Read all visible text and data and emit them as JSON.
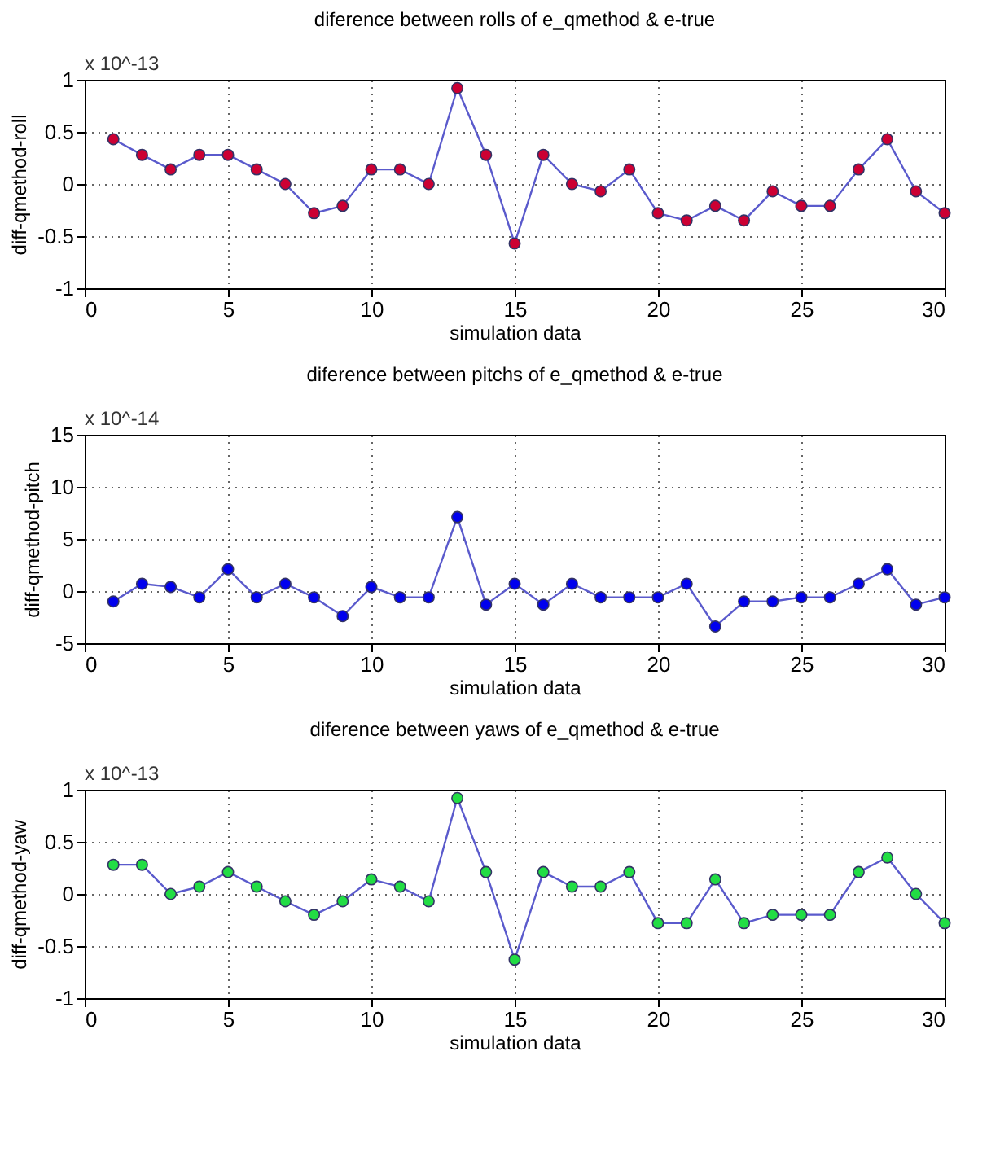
{
  "chart_data": [
    {
      "type": "line",
      "title": "diference between rolls of e_qmethod & e-true",
      "xlabel": "simulation data",
      "ylabel": "diff-qmethod-roll",
      "annotations": [
        "x 10^-13"
      ],
      "x": [
        1,
        2,
        3,
        4,
        5,
        6,
        7,
        8,
        9,
        10,
        11,
        12,
        13,
        14,
        15,
        16,
        17,
        18,
        19,
        20,
        21,
        22,
        23,
        24,
        25,
        26,
        27,
        28,
        29,
        30
      ],
      "series": [
        {
          "color": "#cc0033",
          "values": [
            0.43,
            0.28,
            0.14,
            0.28,
            0.28,
            0.14,
            0,
            -0.28,
            -0.21,
            0.14,
            0.14,
            0,
            0.92,
            0.28,
            -0.57,
            0.28,
            0,
            -0.07,
            0.14,
            -0.28,
            -0.35,
            -0.21,
            -0.35,
            -0.07,
            -0.21,
            -0.21,
            0.14,
            0.43,
            -0.07,
            -0.28
          ]
        }
      ],
      "xlim": [
        0,
        30
      ],
      "xticks": [
        0,
        5,
        10,
        15,
        20,
        25,
        30
      ],
      "ylim": [
        -1,
        1
      ],
      "yticks": [
        -1,
        -0.5,
        0,
        0.5,
        1
      ],
      "grid": true,
      "marker": "circle",
      "line_style": "solid"
    },
    {
      "type": "line",
      "title": "diference between pitchs of e_qmethod & e-true",
      "xlabel": "simulation data",
      "ylabel": "diff-qmethod-pitch",
      "annotations": [
        "x 10^-14"
      ],
      "x": [
        1,
        2,
        3,
        4,
        5,
        6,
        7,
        8,
        9,
        10,
        11,
        12,
        13,
        14,
        15,
        16,
        17,
        18,
        19,
        20,
        21,
        22,
        23,
        24,
        25,
        26,
        27,
        28,
        29,
        30
      ],
      "series": [
        {
          "color": "#0000ee",
          "values": [
            -1,
            0.7,
            0.4,
            -0.6,
            2.1,
            -0.6,
            0.7,
            -0.6,
            -2.4,
            0.4,
            -0.6,
            -0.6,
            7.1,
            -1.3,
            0.7,
            -1.3,
            0.7,
            -0.6,
            -0.6,
            -0.6,
            0.7,
            -3.4,
            -1,
            -1,
            -0.6,
            -0.6,
            0.7,
            2.1,
            -1.3,
            -0.6
          ]
        }
      ],
      "xlim": [
        0,
        30
      ],
      "xticks": [
        0,
        5,
        10,
        15,
        20,
        25,
        30
      ],
      "ylim": [
        -5,
        15
      ],
      "yticks": [
        -5,
        0,
        5,
        10,
        15
      ],
      "grid": true,
      "marker": "circle",
      "line_style": "solid"
    },
    {
      "type": "line",
      "title": "diference between yaws of e_qmethod & e-true",
      "xlabel": "simulation data",
      "ylabel": "diff-qmethod-yaw",
      "annotations": [
        "x 10^-13"
      ],
      "x": [
        1,
        2,
        3,
        4,
        5,
        6,
        7,
        8,
        9,
        10,
        11,
        12,
        13,
        14,
        15,
        16,
        17,
        18,
        19,
        20,
        21,
        22,
        23,
        24,
        25,
        26,
        27,
        28,
        29,
        30
      ],
      "series": [
        {
          "color": "#22dd44",
          "values": [
            0.28,
            0.28,
            0,
            0.07,
            0.21,
            0.07,
            -0.07,
            -0.2,
            -0.07,
            0.14,
            0.07,
            -0.07,
            0.92,
            0.21,
            -0.63,
            0.21,
            0.07,
            0.07,
            0.21,
            -0.28,
            -0.28,
            0.14,
            -0.28,
            -0.2,
            -0.2,
            -0.2,
            0.21,
            0.35,
            0,
            -0.28
          ]
        }
      ],
      "xlim": [
        0,
        30
      ],
      "xticks": [
        0,
        5,
        10,
        15,
        20,
        25,
        30
      ],
      "ylim": [
        -1,
        1
      ],
      "yticks": [
        -1,
        -0.5,
        0,
        0.5,
        1
      ],
      "grid": true,
      "marker": "circle",
      "line_style": "solid"
    }
  ]
}
